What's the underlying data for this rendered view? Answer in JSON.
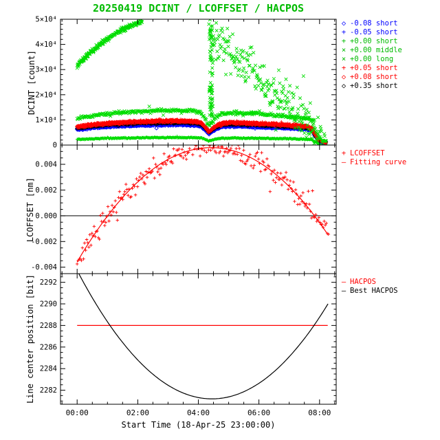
{
  "chart_data": {
    "type": "scatter",
    "title": "20250419 DCINT / LCOFFSET / HACPOS",
    "title_color": "#00bb00",
    "seed": 987654321,
    "x": {
      "label": "Start Time (18-Apr-25 23:00:00)",
      "min": -0.55,
      "max": 8.55,
      "ticks": [
        0,
        2,
        4,
        6,
        8
      ],
      "tick_labels": [
        "00:00",
        "02:00",
        "04:00",
        "06:00",
        "08:00"
      ],
      "minor_step": 0.5
    },
    "bases": {
      "short_base": [
        [
          0,
          0.76
        ],
        [
          0.4,
          0.83
        ],
        [
          0.8,
          0.88
        ],
        [
          1.2,
          0.915
        ],
        [
          1.6,
          0.945
        ],
        [
          2.0,
          0.965
        ],
        [
          2.4,
          0.98
        ],
        [
          2.8,
          0.995
        ],
        [
          3.2,
          1.0
        ],
        [
          3.6,
          0.995
        ],
        [
          3.9,
          0.975
        ],
        [
          4.1,
          0.92
        ],
        [
          4.25,
          0.72
        ],
        [
          4.35,
          0.55
        ],
        [
          4.5,
          0.72
        ],
        [
          4.65,
          0.85
        ],
        [
          4.85,
          0.91
        ],
        [
          5.1,
          0.93
        ],
        [
          5.5,
          0.915
        ],
        [
          6.0,
          0.89
        ],
        [
          6.5,
          0.86
        ],
        [
          7.0,
          0.825
        ],
        [
          7.3,
          0.8
        ],
        [
          7.6,
          0.77
        ],
        [
          7.75,
          0.7
        ],
        [
          7.85,
          0.45
        ],
        [
          7.95,
          0.25
        ],
        [
          8.1,
          0.14
        ],
        [
          8.2,
          0.12
        ]
      ]
    },
    "panels": [
      {
        "name": "dcint",
        "ylabel": "DCINT [count]",
        "ymin": 0,
        "ymax": 50000,
        "yticks": [
          0,
          10000,
          20000,
          30000,
          40000,
          50000
        ],
        "ytick_labels": [
          "0",
          "1×10⁴",
          "2×10⁴",
          "3×10⁴",
          "4×10⁴",
          "5×10⁴"
        ],
        "y_minor_step": 2000,
        "legend": [
          {
            "symbol": "◇",
            "color": "#0000ff",
            "label": "-0.08 short"
          },
          {
            "symbol": "+",
            "color": "#0000ff",
            "label": "-0.05 short"
          },
          {
            "symbol": "+",
            "color": "#00bb00",
            "label": "+0.00 short"
          },
          {
            "symbol": "×",
            "color": "#00bb00",
            "label": "+0.00 middle"
          },
          {
            "symbol": "×",
            "color": "#00bb00",
            "label": "+0.00 long"
          },
          {
            "symbol": "+",
            "color": "#ff0000",
            "label": "+0.05 short"
          },
          {
            "symbol": "◇",
            "color": "#ff0000",
            "label": "+0.08 short"
          },
          {
            "symbol": "◇",
            "color": "#000000",
            "label": "+0.35 short"
          }
        ],
        "series": [
          {
            "label": "+0.00 short",
            "color": "#00dd00",
            "symbol": "plus",
            "gen": {
              "kind": "anchors",
              "base": "short_base",
              "scale": 3000,
              "noise": 110,
              "t0": 0,
              "t1": 8.22,
              "step": 0.02
            }
          },
          {
            "label": "-0.08 short",
            "color": "#0000ff",
            "symbol": "diamond",
            "gen": {
              "kind": "anchors",
              "base": "short_base",
              "scale": 8000,
              "noise": 130,
              "t0": 0,
              "t1": 8.22,
              "step": 0.022
            }
          },
          {
            "label": "-0.05 short",
            "color": "#0000ff",
            "symbol": "plus",
            "gen": {
              "kind": "anchors",
              "base": "short_base",
              "scale": 8400,
              "noise": 140,
              "t0": 0,
              "t1": 8.22,
              "step": 0.021
            }
          },
          {
            "label": "+0.35 short",
            "color": "#000000",
            "symbol": "diamond",
            "gen": {
              "kind": "anchors",
              "base": "short_base",
              "scale": 8900,
              "noise": 140,
              "t0": 0,
              "t1": 8.22,
              "step": 0.023
            }
          },
          {
            "label": "+0.08 short",
            "color": "#ff0000",
            "symbol": "diamond",
            "gen": {
              "kind": "anchors",
              "base": "short_base",
              "scale": 9400,
              "noise": 150,
              "t0": 0,
              "t1": 8.22,
              "step": 0.022
            }
          },
          {
            "label": "+0.05 short",
            "color": "#ff0000",
            "symbol": "plus",
            "gen": {
              "kind": "anchors",
              "base": "short_base",
              "scale": 10000,
              "noise": 160,
              "t0": 0,
              "t1": 8.22,
              "step": 0.021
            }
          },
          {
            "label": "+0.00 middle",
            "color": "#00dd00",
            "symbol": "x",
            "gen": {
              "kind": "anchors",
              "base": "short_base",
              "scale": 13800,
              "noise": 300,
              "t0": 0,
              "t1": 8.22,
              "step": 0.02
            }
          },
          {
            "label": "+0.00 long rise",
            "color": "#00dd00",
            "symbol": "x",
            "gen": {
              "kind": "anchors",
              "anchors": [
                [
                  0,
                  31500
                ],
                [
                  0.2,
                  34000
                ],
                [
                  0.45,
                  37000
                ],
                [
                  0.7,
                  39500
                ],
                [
                  0.95,
                  41800
                ],
                [
                  1.2,
                  43800
                ],
                [
                  1.45,
                  45500
                ],
                [
                  1.7,
                  47000
                ],
                [
                  1.95,
                  48300
                ],
                [
                  2.15,
                  49200
                ]
              ],
              "noise": 420,
              "t0": 0,
              "t1": 2.15,
              "step": 0.009
            }
          },
          {
            "label": "+0.00 long fall",
            "color": "#00dd00",
            "symbol": "x",
            "gen": {
              "kind": "anchors",
              "anchors": [
                [
                  4.35,
                  46000
                ],
                [
                  4.8,
                  40000
                ],
                [
                  5.2,
                  34000
                ],
                [
                  5.6,
                  32000
                ],
                [
                  6.0,
                  27000
                ],
                [
                  6.4,
                  22000
                ],
                [
                  6.8,
                  20000
                ],
                [
                  7.2,
                  14000
                ],
                [
                  7.5,
                  9000
                ],
                [
                  7.8,
                  5000
                ],
                [
                  8.0,
                  3500
                ],
                [
                  8.15,
                  3000
                ]
              ],
              "noise": 4200,
              "t0": 4.35,
              "t1": 8.18,
              "step": 0.016
            }
          },
          {
            "label": "+0.00 long burst",
            "color": "#00dd00",
            "symbol": "x",
            "gen": {
              "kind": "vspread",
              "t": 4.42,
              "tjitter": 0.06,
              "vmin": 9000,
              "vmax": 48500,
              "n": 70
            }
          }
        ]
      },
      {
        "name": "lcoffset",
        "ylabel": "LCOFFSET [nm]",
        "ymin": -0.0045,
        "ymax": 0.0055,
        "yticks": [
          -0.004,
          -0.002,
          0,
          0.002,
          0.004
        ],
        "ytick_labels": [
          "-0.004",
          "-0.002",
          "0.000",
          "0.002",
          "0.004"
        ],
        "y_minor_step": 0.0005,
        "legend": [
          {
            "symbol": "+",
            "color": "#ff0000",
            "label": "LCOFFSET"
          },
          {
            "symbol": "—",
            "color": "#ff0000",
            "label": "Fitting curve"
          }
        ],
        "series": [
          {
            "label": "zero line",
            "color": "#000000",
            "type": "line",
            "sw": 1,
            "gen": {
              "kind": "hline",
              "y": 0
            }
          },
          {
            "label": "LCOFFSET",
            "color": "#ff0000",
            "symbol": "plus",
            "gen": {
              "kind": "parabola",
              "a": 0.0053,
              "c": 4.42,
              "b": -0.000455,
              "noise": 0.00038,
              "t0": 0,
              "t1": 8.3,
              "step": 0.035
            }
          },
          {
            "label": "Fitting curve",
            "color": "#ff0000",
            "type": "line",
            "sw": 1.2,
            "gen": {
              "kind": "parabola_line",
              "a": 0.0053,
              "c": 4.42,
              "b": -0.000455,
              "t0": 0,
              "t1": 8.3,
              "step": 0.08
            }
          }
        ]
      },
      {
        "name": "hacpos",
        "ylabel": "Line center position [bit]",
        "ymin": 2280.7,
        "ymax": 2292.8,
        "yticks": [
          2282,
          2284,
          2286,
          2288,
          2290,
          2292
        ],
        "ytick_labels": [
          "2282",
          "2284",
          "2286",
          "2288",
          "2290",
          "2292"
        ],
        "y_minor_step": 0.5,
        "legend": [
          {
            "symbol": "—",
            "color": "#ff0000",
            "label": "HACPOS"
          },
          {
            "symbol": "—",
            "color": "#000000",
            "label": "Best HACPOS"
          }
        ],
        "series": [
          {
            "label": "HACPOS",
            "color": "#ff0000",
            "type": "line",
            "sw": 1.2,
            "gen": {
              "kind": "hline",
              "y": 2288,
              "t0": 0,
              "t1": 8.27
            }
          },
          {
            "label": "Best HACPOS",
            "color": "#000000",
            "type": "line",
            "sw": 1.2,
            "gen": {
              "kind": "parabola_line",
              "a": 2281.2,
              "c": 4.45,
              "b": 0.6,
              "t0": -0.02,
              "t1": 8.3,
              "step": 0.05
            }
          }
        ]
      }
    ]
  }
}
